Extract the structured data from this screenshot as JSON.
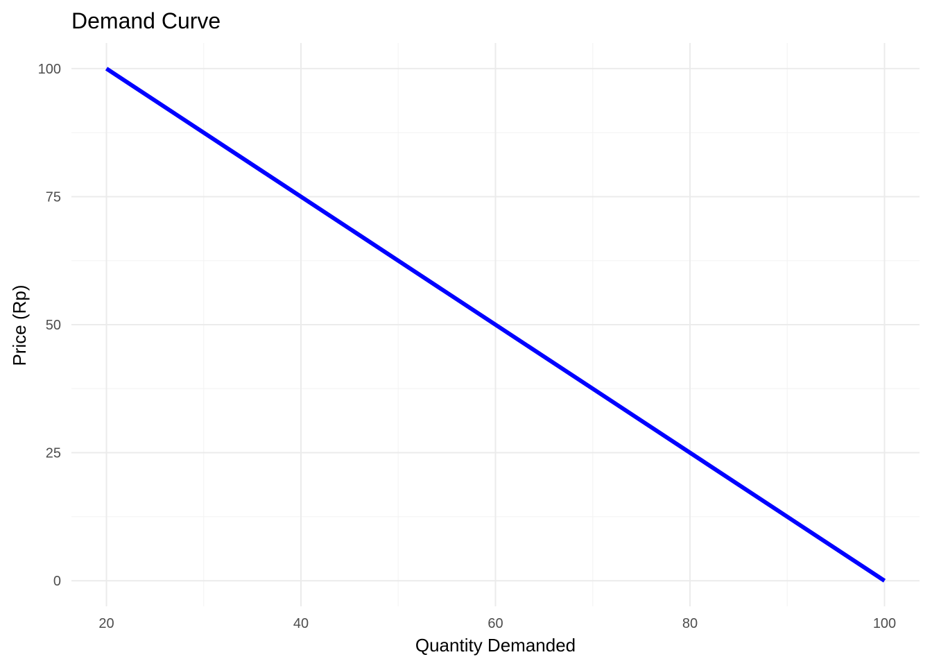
{
  "chart_data": {
    "type": "line",
    "title": "Demand Curve",
    "xlabel": "Quantity Demanded",
    "ylabel": "Price (Rp)",
    "xlim": [
      16.4,
      103.6
    ],
    "ylim": [
      -5,
      105
    ],
    "x_ticks": [
      20,
      40,
      60,
      80,
      100
    ],
    "y_ticks": [
      0,
      25,
      50,
      75,
      100
    ],
    "x_minor_ticks": [
      30,
      50,
      70,
      90
    ],
    "y_minor_ticks": [
      12.5,
      37.5,
      62.5,
      87.5
    ],
    "grid": true,
    "legend": "none",
    "series": [
      {
        "color": "#0000ff",
        "x": [
          20,
          100
        ],
        "y": [
          100,
          0
        ]
      }
    ]
  },
  "colors": {
    "grid_major": "#ebebeb",
    "grid_minor": "#f4f4f4",
    "tick_text": "#4d4d4d",
    "text": "#000000"
  }
}
